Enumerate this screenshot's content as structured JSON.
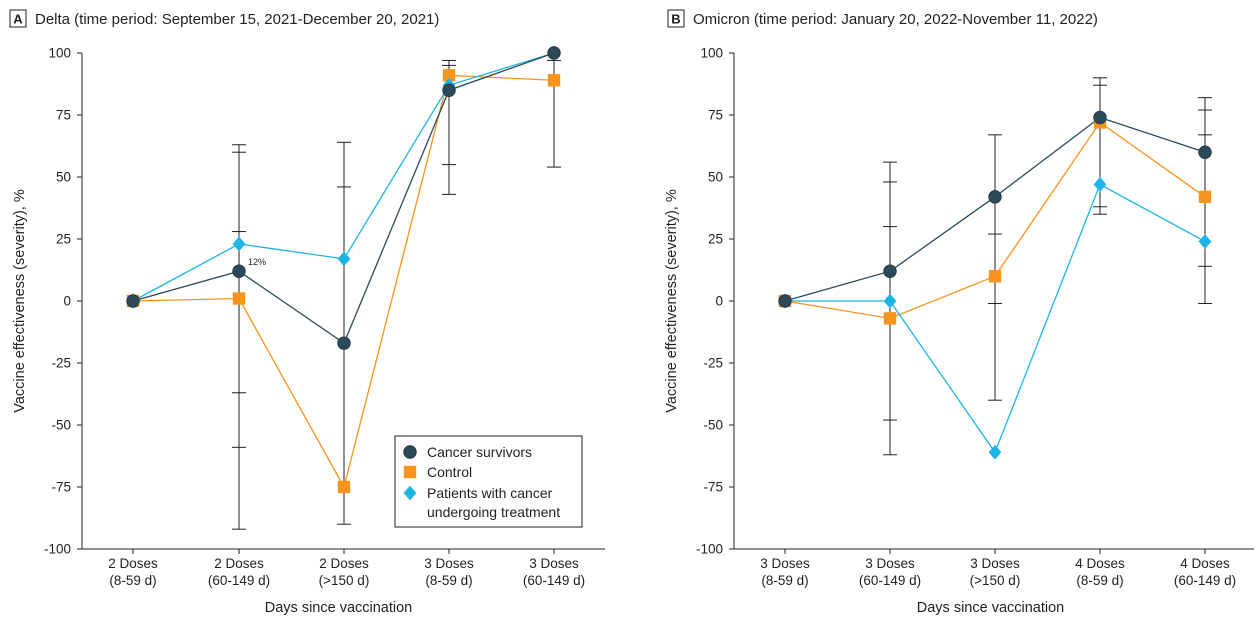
{
  "chart_data": [
    {
      "type": "line",
      "panel_label": "A",
      "title": "Delta (time period: September 15, 2021-December 20, 2021)",
      "xlabel": "Days since vaccination",
      "ylabel": "Vaccine effectiveness (severity), %",
      "categories": [
        [
          "2 Doses",
          "(8-59 d)"
        ],
        [
          "2 Doses",
          "(60-149 d)"
        ],
        [
          "2 Doses",
          "(>150 d)"
        ],
        [
          "3 Doses",
          "(8-59 d)"
        ],
        [
          "3 Doses",
          "(60-149 d)"
        ]
      ],
      "ylim": [
        -100,
        100
      ],
      "yticks": [
        "100",
        "75",
        "50",
        "25",
        "0",
        "-25",
        "-50",
        "-75",
        "-100"
      ],
      "grid": false,
      "legend_position": "bottom-right",
      "series": [
        {
          "name": "Cancer survivors",
          "values": [
            0,
            12,
            -17,
            85,
            100
          ],
          "ci_low": [
            null,
            -59,
            null,
            55,
            null
          ],
          "ci_high": [
            null,
            60,
            46,
            95,
            null
          ]
        },
        {
          "name": "Control",
          "values": [
            0,
            1,
            -75,
            91,
            89
          ],
          "ci_low": [
            null,
            -92,
            -90,
            43,
            54
          ],
          "ci_high": [
            null,
            63,
            64,
            97,
            97
          ]
        },
        {
          "name": "Patients with cancer undergoing treatment",
          "values": [
            0,
            23,
            17,
            87,
            100
          ],
          "ci_low": [
            null,
            -37,
            null,
            null,
            null
          ],
          "ci_high": [
            null,
            28,
            null,
            null,
            null
          ]
        }
      ],
      "annotations": [
        {
          "text": "12%"
        }
      ]
    },
    {
      "type": "line",
      "panel_label": "B",
      "title": "Omicron (time period: January 20, 2022-November 11, 2022)",
      "xlabel": "Days since vaccination",
      "ylabel": "Vaccine effectiveness (severity), %",
      "categories": [
        [
          "3 Doses",
          "(8-59 d)"
        ],
        [
          "3 Doses",
          "(60-149 d)"
        ],
        [
          "3 Doses",
          "(>150 d)"
        ],
        [
          "4 Doses",
          "(8-59 d)"
        ],
        [
          "4 Doses",
          "(60-149 d)"
        ]
      ],
      "ylim": [
        -100,
        100
      ],
      "yticks": [
        "100",
        "75",
        "50",
        "25",
        "0",
        "-25",
        "-50",
        "-75",
        "-100"
      ],
      "grid": false,
      "legend_position": "",
      "series": [
        {
          "name": "Cancer survivors",
          "values": [
            0,
            12,
            42,
            74,
            60
          ],
          "ci_low": [
            null,
            -48,
            -1,
            38,
            14
          ],
          "ci_high": [
            null,
            48,
            67,
            90,
            82
          ]
        },
        {
          "name": "Control",
          "values": [
            0,
            -7,
            10,
            72,
            42
          ],
          "ci_low": [
            null,
            -62,
            -40,
            35,
            -1
          ],
          "ci_high": [
            null,
            56,
            27,
            87,
            67
          ]
        },
        {
          "name": "Patients with cancer undergoing treatment",
          "values": [
            0,
            0,
            -61,
            47,
            24
          ],
          "ci_low": [
            null,
            null,
            null,
            null,
            null
          ],
          "ci_high": [
            null,
            30,
            null,
            null,
            77
          ]
        }
      ],
      "annotations": []
    }
  ],
  "legend": {
    "items": [
      {
        "lines": [
          "Cancer survivors"
        ],
        "marker": "circle"
      },
      {
        "lines": [
          "Control"
        ],
        "marker": "square"
      },
      {
        "lines": [
          "Patients with cancer",
          "undergoing treatment"
        ],
        "marker": "diamond"
      }
    ]
  },
  "colors": {
    "cancer_survivors": "#2c4a5a",
    "control": "#f7941d",
    "treatment": "#1cb5e6",
    "axis": "#231f20",
    "errorbar": "#231f20"
  }
}
